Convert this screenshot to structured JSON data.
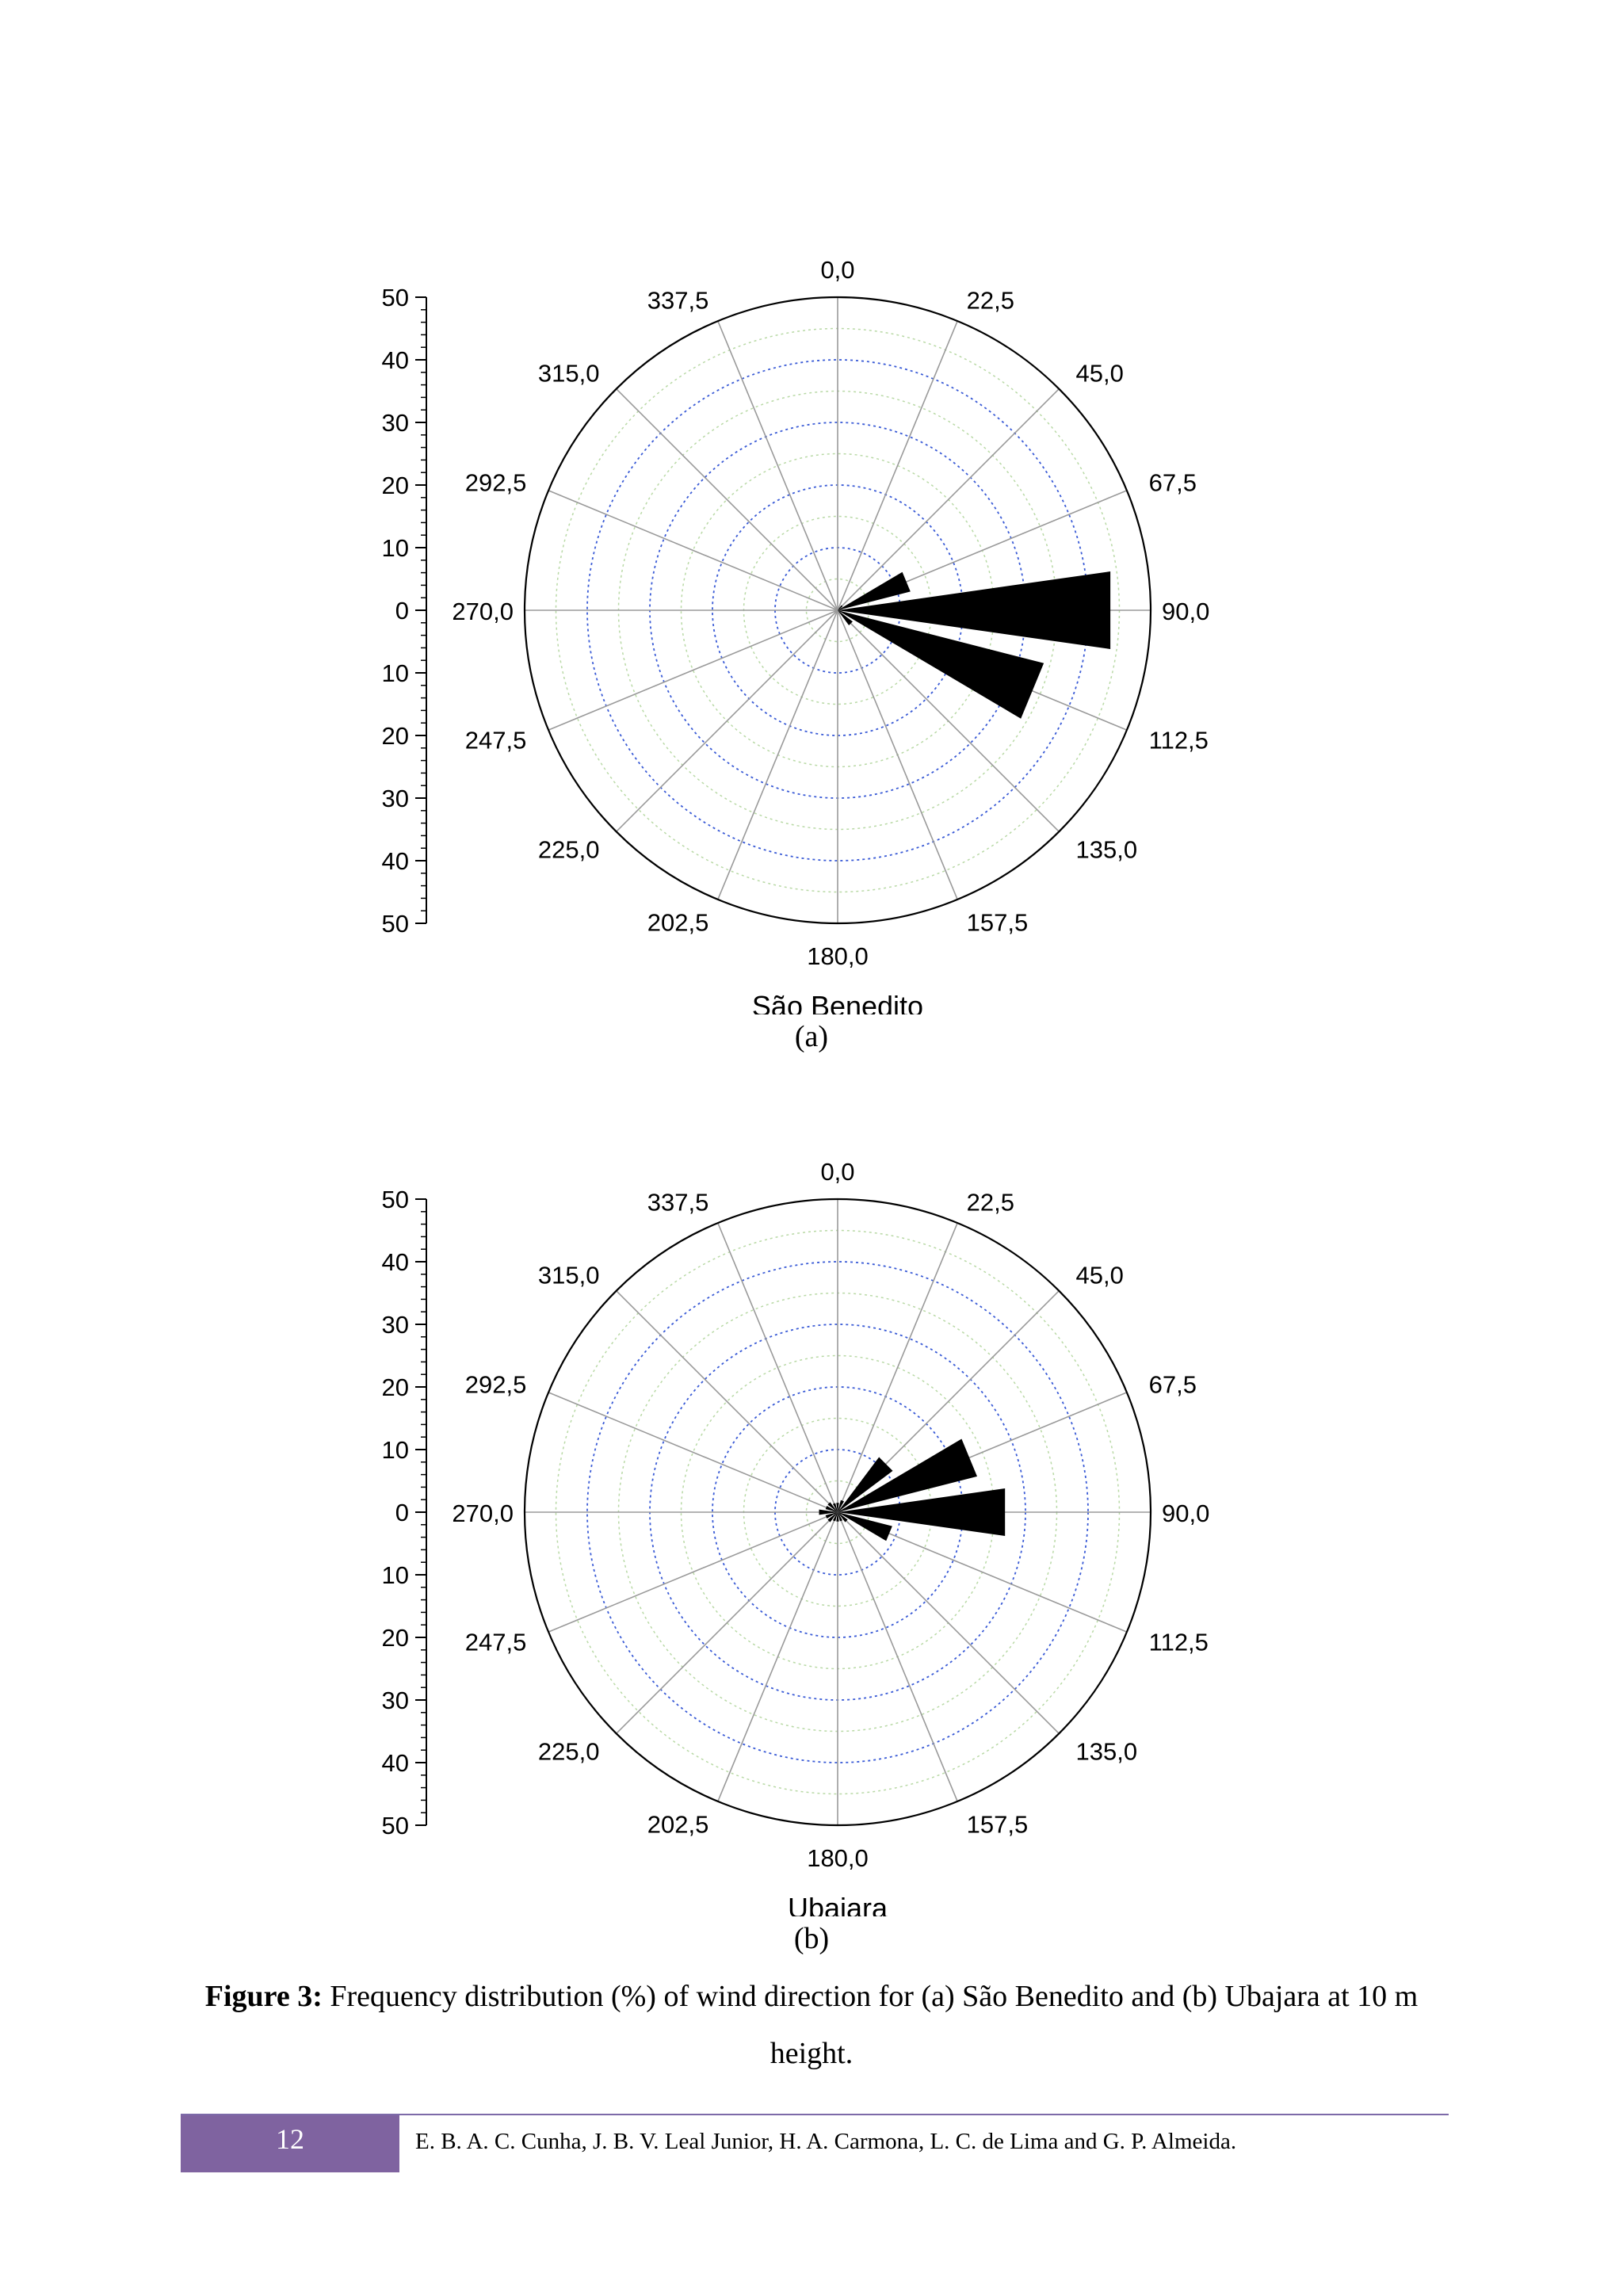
{
  "figures": [
    {
      "id": "a",
      "sublabel": "(a)",
      "station": "São Benedito",
      "chart_data": {
        "type": "polar-bar",
        "title": "São Benedito",
        "radial_axis": {
          "range": [
            0,
            50
          ],
          "ticks": [
            "50",
            "40",
            "30",
            "20",
            "10",
            "0",
            "10",
            "20",
            "30",
            "40",
            "50"
          ]
        },
        "direction_labels": [
          "0,0",
          "22,5",
          "45,0",
          "67,5",
          "90,0",
          "112,5",
          "135,0",
          "157,5",
          "180,0",
          "202,5",
          "225,0",
          "247,5",
          "270,0",
          "292,5",
          "315,0",
          "337,5"
        ],
        "directions": [
          0,
          22.5,
          45,
          67.5,
          90,
          112.5,
          135,
          157.5,
          180,
          202.5,
          225,
          247.5,
          270,
          292.5,
          315,
          337.5
        ],
        "values": [
          0,
          0,
          1,
          12,
          44,
          34,
          3,
          0,
          0,
          0,
          0,
          0,
          0,
          0,
          0,
          0
        ],
        "grid": true
      }
    },
    {
      "id": "b",
      "sublabel": "(b)",
      "station": "Ubajara",
      "chart_data": {
        "type": "polar-bar",
        "title": "Ubajara",
        "radial_axis": {
          "range": [
            0,
            50
          ],
          "ticks": [
            "50",
            "40",
            "30",
            "20",
            "10",
            "0",
            "10",
            "20",
            "30",
            "40",
            "50"
          ]
        },
        "direction_labels": [
          "0,0",
          "22,5",
          "45,0",
          "67,5",
          "90,0",
          "112,5",
          "135,0",
          "157,5",
          "180,0",
          "202,5",
          "225,0",
          "247,5",
          "270,0",
          "292,5",
          "315,0",
          "337,5"
        ],
        "directions": [
          0,
          22.5,
          45,
          67.5,
          90,
          112.5,
          135,
          157.5,
          180,
          202.5,
          225,
          247.5,
          270,
          292.5,
          315,
          337.5
        ],
        "values": [
          1.5,
          2,
          11,
          23,
          27,
          9,
          2,
          1.5,
          1.5,
          1.5,
          2,
          2,
          3,
          2,
          2,
          1.5
        ],
        "grid": true
      }
    }
  ],
  "caption": {
    "label": "Figure 3:",
    "text": " Frequency distribution (%) of wind direction for (a) São Benedito and (b) Ubajara at 10 m height."
  },
  "footer": {
    "page_number": "12",
    "authors": "E. B. A. C. Cunha, J. B. V. Leal Junior, H. A. Carmona, L. C. de Lima and G. P. Almeida."
  },
  "colors": {
    "bars": "#000000",
    "inner_grid": "#3a5bd6",
    "outer_grid": "#b9d9a6",
    "axes": "#000000",
    "footer_box": "#7f63a0"
  }
}
